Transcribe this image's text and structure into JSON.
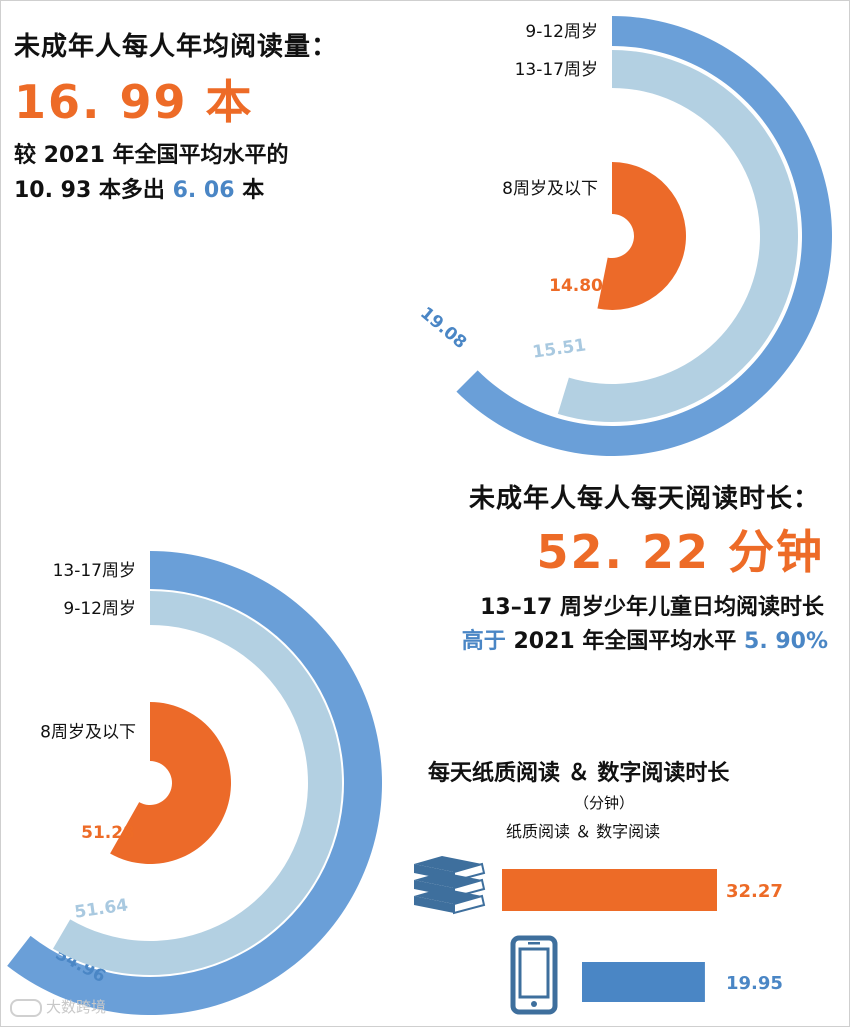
{
  "colors": {
    "orange": "#ed6b27",
    "blue": "#4a86c5",
    "ring_outer": "#6a9fd8",
    "ring_mid": "#b3d0e2",
    "ring_inner": "#ec6a29",
    "books": "#3e6f9d"
  },
  "icons": [
    "books-icon",
    "phone-icon"
  ],
  "section_books": {
    "title": "未成年人每人年均阅读量：",
    "headline": "16. 99 本",
    "line1": "较 2021 年全国平均水平的",
    "line2_a": "10. 93 本多出 ",
    "line2_highlight": "6. 06",
    "line2_b": " 本"
  },
  "section_time": {
    "title": "未成年人每人每天阅读时长：",
    "headline": "52. 22 分钟",
    "line1": "13–17 周岁少年儿童日均阅读时长",
    "line2_highlight_a": "高于",
    "line2_b": " 2021 年全国平均水平 ",
    "line2_highlight_c": "5. 90%"
  },
  "section_compare": {
    "title": "每天纸质阅读 ＆ 数字阅读时长",
    "unit": "（分钟）",
    "legend": "纸质阅读 ＆ 数字阅读"
  },
  "watermark": "大数跨境",
  "chart_data": [
    {
      "type": "radial-bar",
      "unit": "本",
      "series": [
        {
          "label": "9-12周岁",
          "value": 19.08,
          "value_text": "19.08"
        },
        {
          "label": "13-17周岁",
          "value": 15.51,
          "value_text": "15.51"
        },
        {
          "label": "8周岁及以下",
          "value": 14.8,
          "value_text": "14.80"
        }
      ]
    },
    {
      "type": "radial-bar",
      "unit": "分钟",
      "series": [
        {
          "label": "13-17周岁",
          "value": 54.96,
          "value_text": "54.96"
        },
        {
          "label": "9-12周岁",
          "value": 51.64,
          "value_text": "51.64"
        },
        {
          "label": "8周岁及以下",
          "value": 51.28,
          "value_text": "51.28"
        }
      ]
    },
    {
      "type": "bar",
      "categories": [
        "纸质阅读",
        "数字阅读"
      ],
      "values": [
        32.27,
        19.95
      ],
      "value_text": [
        "32.27",
        "19.95"
      ]
    }
  ]
}
